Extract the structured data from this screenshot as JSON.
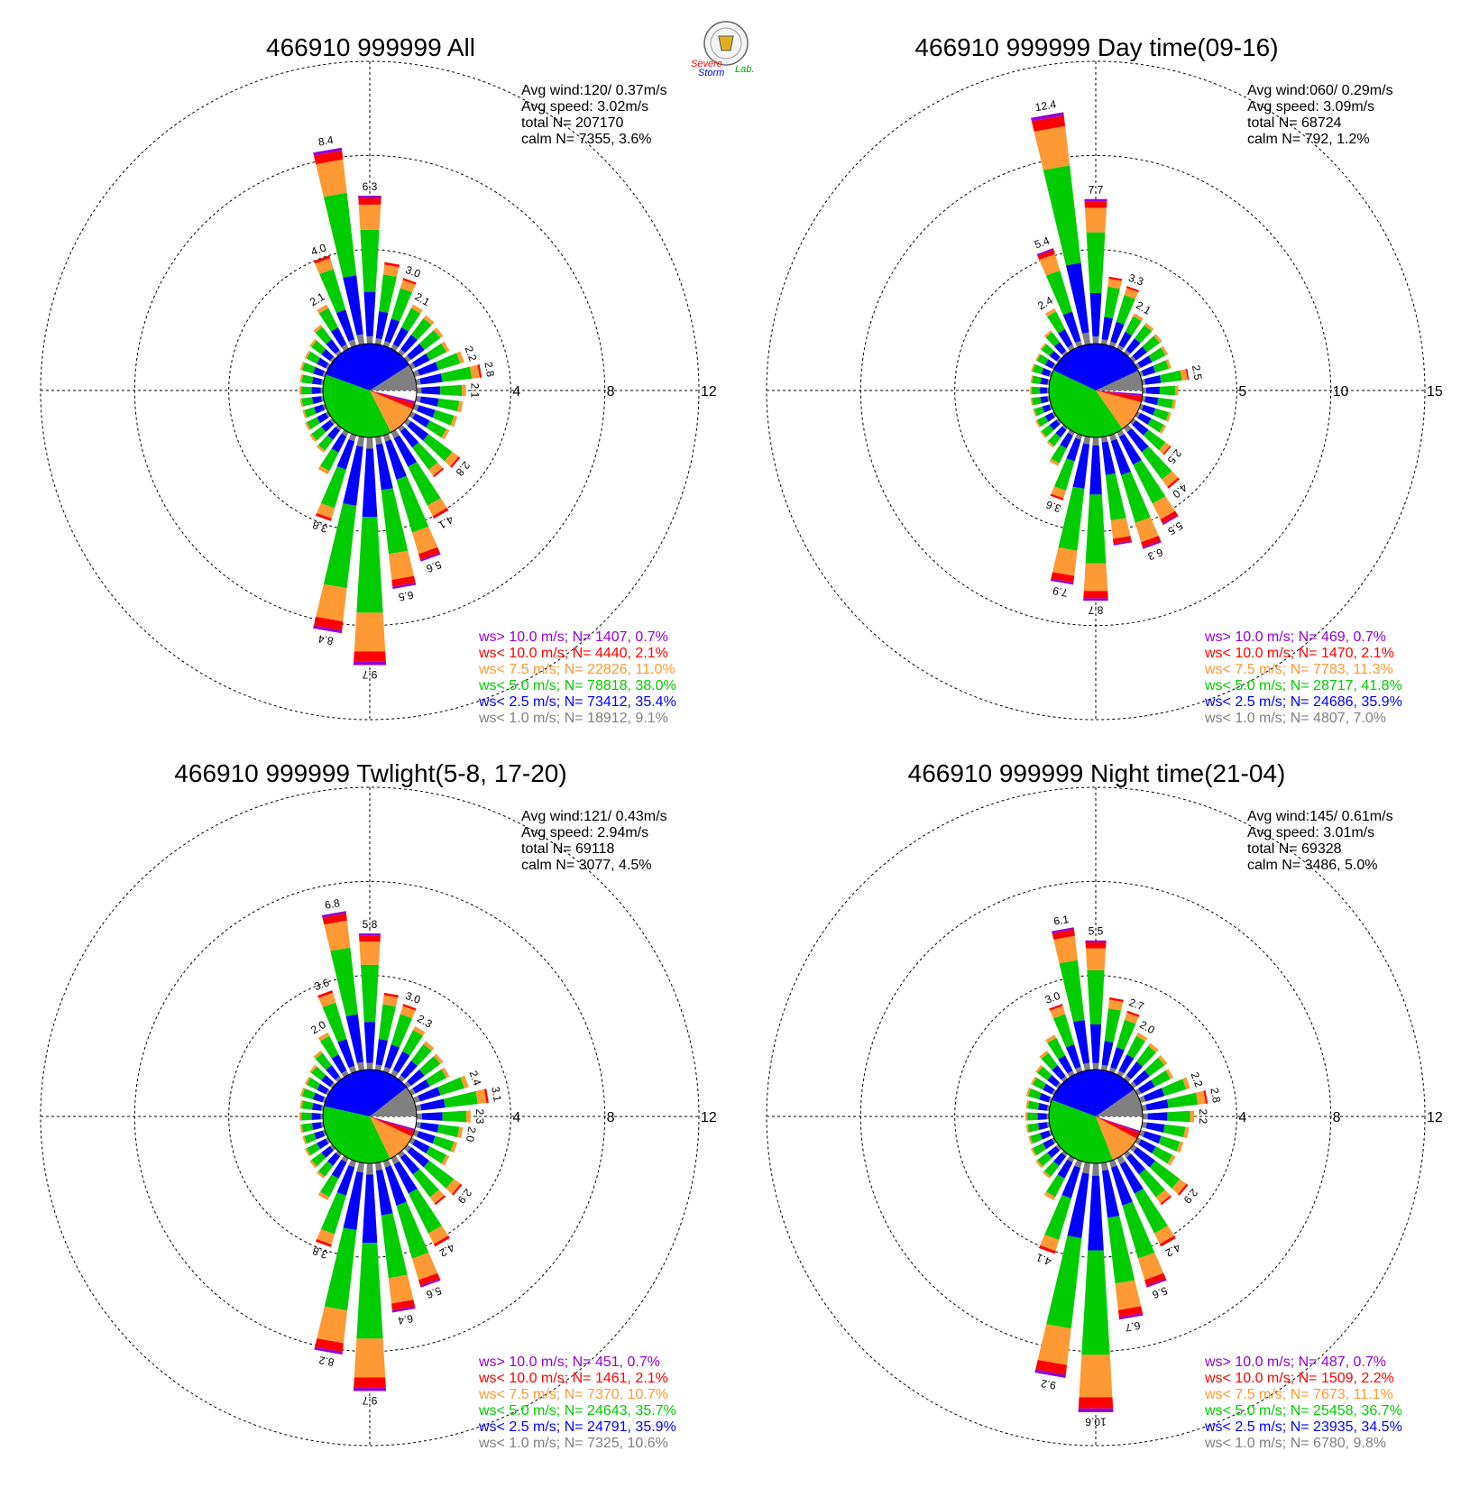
{
  "colors": {
    "gt10": "#9400d3",
    "lt10": "#ff0000",
    "lt75": "#ff9933",
    "lt50": "#00cc00",
    "lt25": "#0000ff",
    "lt10ms": "#808080",
    "grid": "#000000"
  },
  "logo": {
    "text_severe": "Severe",
    "text_storm": "Storm",
    "text_lab": "Lab."
  },
  "chart_data": [
    {
      "type": "wind-rose",
      "title": "466910 999999 All",
      "stats": {
        "avg_wind": "Avg wind:120/ 0.37m/s",
        "avg_speed": "Avg speed: 3.02m/s",
        "total": "total N=      207170",
        "calm": "calm N=   7355,   3.6%"
      },
      "ring_labels": [
        "4",
        "8",
        "12"
      ],
      "rmax": 12,
      "labels": [
        {
          "dir": 0,
          "text": "6.3"
        },
        {
          "dir": 20,
          "text": "3.0"
        },
        {
          "dir": 30,
          "text": "2.1"
        },
        {
          "dir": 70,
          "text": "2.2"
        },
        {
          "dir": 80,
          "text": "2.8"
        },
        {
          "dir": 90,
          "text": "2.1"
        },
        {
          "dir": 130,
          "text": "2.8"
        },
        {
          "dir": 150,
          "text": "4.1"
        },
        {
          "dir": 160,
          "text": "5.6"
        },
        {
          "dir": 170,
          "text": "6.5"
        },
        {
          "dir": 180,
          "text": "9.7"
        },
        {
          "dir": 190,
          "text": "8.4"
        },
        {
          "dir": 200,
          "text": "3.8"
        },
        {
          "dir": 330,
          "text": "2.1"
        },
        {
          "dir": 340,
          "text": "4.0"
        },
        {
          "dir": 350,
          "text": "8.4"
        }
      ],
      "totals": [
        6.3,
        3.5,
        3.0,
        2.1,
        2.0,
        1.9,
        1.8,
        2.2,
        2.8,
        2.1,
        2.0,
        1.9,
        1.8,
        2.8,
        2.6,
        4.1,
        5.6,
        6.5,
        9.7,
        8.4,
        3.8,
        2.0,
        1.3,
        1.2,
        1.1,
        1.0,
        1.0,
        1.0,
        1.0,
        1.1,
        1.1,
        1.2,
        1.5,
        2.1,
        4.0,
        8.4
      ],
      "calm_pie": [
        {
          "cls": "lt10ms",
          "pct": 9.1
        },
        {
          "cls": "lt25",
          "pct": 35.4
        },
        {
          "cls": "lt50",
          "pct": 38.0
        },
        {
          "cls": "lt75",
          "pct": 11.0
        },
        {
          "cls": "lt10",
          "pct": 2.1
        },
        {
          "cls": "gt10",
          "pct": 0.7
        }
      ],
      "legend": [
        {
          "cls": "gt10",
          "text": "ws> 10.0 m/s; N=  1407,  0.7%"
        },
        {
          "cls": "lt10",
          "text": "ws< 10.0 m/s; N=  4440,  2.1%"
        },
        {
          "cls": "lt75",
          "text": "ws<  7.5 m/s; N= 22826, 11.0%"
        },
        {
          "cls": "lt50",
          "text": "ws<  5.0 m/s; N= 78818, 38.0%"
        },
        {
          "cls": "lt25",
          "text": "ws<  2.5 m/s; N= 73412, 35.4%"
        },
        {
          "cls": "lt10ms",
          "text": "ws<  1.0 m/s; N= 18912,  9.1%"
        }
      ]
    },
    {
      "type": "wind-rose",
      "title": "466910 999999 Day time(09-16)",
      "stats": {
        "avg_wind": "Avg wind:060/ 0.29m/s",
        "avg_speed": "Avg speed: 3.09m/s",
        "total": "total N=       68724",
        "calm": "calm N=    792,   1.2%"
      },
      "ring_labels": [
        "5",
        "10",
        "15"
      ],
      "rmax": 15,
      "labels": [
        {
          "dir": 0,
          "text": "7.7"
        },
        {
          "dir": 20,
          "text": "3.3"
        },
        {
          "dir": 30,
          "text": "2.1"
        },
        {
          "dir": 80,
          "text": "2.5"
        },
        {
          "dir": 130,
          "text": "2.5"
        },
        {
          "dir": 140,
          "text": "4.0"
        },
        {
          "dir": 150,
          "text": "5.5"
        },
        {
          "dir": 160,
          "text": "6.3"
        },
        {
          "dir": 180,
          "text": "8.7"
        },
        {
          "dir": 190,
          "text": "7.9"
        },
        {
          "dir": 200,
          "text": "3.6"
        },
        {
          "dir": 330,
          "text": "2.4"
        },
        {
          "dir": 340,
          "text": "5.4"
        },
        {
          "dir": 350,
          "text": "12.4"
        }
      ],
      "totals": [
        7.7,
        3.6,
        3.3,
        2.1,
        2.0,
        1.9,
        1.8,
        1.7,
        2.5,
        1.9,
        1.8,
        1.7,
        1.7,
        2.5,
        4.0,
        5.5,
        6.3,
        5.8,
        8.7,
        7.9,
        3.6,
        2.0,
        1.3,
        1.2,
        1.1,
        1.0,
        1.0,
        1.0,
        1.0,
        1.1,
        1.1,
        1.2,
        1.5,
        2.4,
        5.4,
        12.4
      ],
      "calm_pie": [
        {
          "cls": "lt10ms",
          "pct": 7.0
        },
        {
          "cls": "lt25",
          "pct": 35.9
        },
        {
          "cls": "lt50",
          "pct": 41.8
        },
        {
          "cls": "lt75",
          "pct": 11.3
        },
        {
          "cls": "lt10",
          "pct": 2.1
        },
        {
          "cls": "gt10",
          "pct": 0.7
        }
      ],
      "legend": [
        {
          "cls": "gt10",
          "text": "ws> 10.0 m/s; N=   469,  0.7%"
        },
        {
          "cls": "lt10",
          "text": "ws< 10.0 m/s; N=  1470,  2.1%"
        },
        {
          "cls": "lt75",
          "text": "ws<  7.5 m/s; N=  7783, 11.3%"
        },
        {
          "cls": "lt50",
          "text": "ws<  5.0 m/s; N= 28717, 41.8%"
        },
        {
          "cls": "lt25",
          "text": "ws<  2.5 m/s; N= 24686, 35.9%"
        },
        {
          "cls": "lt10ms",
          "text": "ws<  1.0 m/s; N=  4807,  7.0%"
        }
      ]
    },
    {
      "type": "wind-rose",
      "title": "466910 999999 Twlight(5-8, 17-20)",
      "stats": {
        "avg_wind": "Avg wind:121/ 0.43m/s",
        "avg_speed": "Avg speed: 2.94m/s",
        "total": "total N=       69118",
        "calm": "calm N=   3077,   4.5%"
      },
      "ring_labels": [
        "4",
        "8",
        "12"
      ],
      "rmax": 12,
      "labels": [
        {
          "dir": 0,
          "text": "5.8"
        },
        {
          "dir": 20,
          "text": "3.0"
        },
        {
          "dir": 30,
          "text": "2.3"
        },
        {
          "dir": 70,
          "text": "2.4"
        },
        {
          "dir": 80,
          "text": "3.1"
        },
        {
          "dir": 90,
          "text": "2.3"
        },
        {
          "dir": 100,
          "text": "2.0"
        },
        {
          "dir": 130,
          "text": "2.9"
        },
        {
          "dir": 150,
          "text": "4.2"
        },
        {
          "dir": 160,
          "text": "5.6"
        },
        {
          "dir": 170,
          "text": "6.4"
        },
        {
          "dir": 180,
          "text": "9.7"
        },
        {
          "dir": 190,
          "text": "8.2"
        },
        {
          "dir": 200,
          "text": "3.8"
        },
        {
          "dir": 330,
          "text": "2.0"
        },
        {
          "dir": 340,
          "text": "3.6"
        },
        {
          "dir": 350,
          "text": "6.8"
        }
      ],
      "totals": [
        5.8,
        3.3,
        3.0,
        2.3,
        2.0,
        1.9,
        1.8,
        2.4,
        3.1,
        2.3,
        2.0,
        1.9,
        1.8,
        2.9,
        2.7,
        4.2,
        5.6,
        6.4,
        9.7,
        8.2,
        3.8,
        2.0,
        1.3,
        1.2,
        1.1,
        1.0,
        1.0,
        1.0,
        1.0,
        1.1,
        1.1,
        1.2,
        1.5,
        2.0,
        3.6,
        6.8
      ],
      "calm_pie": [
        {
          "cls": "lt10ms",
          "pct": 10.6
        },
        {
          "cls": "lt25",
          "pct": 35.9
        },
        {
          "cls": "lt50",
          "pct": 35.7
        },
        {
          "cls": "lt75",
          "pct": 10.7
        },
        {
          "cls": "lt10",
          "pct": 2.1
        },
        {
          "cls": "gt10",
          "pct": 0.7
        }
      ],
      "legend": [
        {
          "cls": "gt10",
          "text": "ws> 10.0 m/s; N=   451,  0.7%"
        },
        {
          "cls": "lt10",
          "text": "ws< 10.0 m/s; N=  1461,  2.1%"
        },
        {
          "cls": "lt75",
          "text": "ws<  7.5 m/s; N=  7370, 10.7%"
        },
        {
          "cls": "lt50",
          "text": "ws<  5.0 m/s; N= 24643, 35.7%"
        },
        {
          "cls": "lt25",
          "text": "ws<  2.5 m/s; N= 24791, 35.9%"
        },
        {
          "cls": "lt10ms",
          "text": "ws<  1.0 m/s; N=  7325, 10.6%"
        }
      ]
    },
    {
      "type": "wind-rose",
      "title": "466910 999999 Night time(21-04)",
      "stats": {
        "avg_wind": "Avg wind:145/ 0.61m/s",
        "avg_speed": "Avg speed: 3.01m/s",
        "total": "total N=       69328",
        "calm": "calm N=   3486,   5.0%"
      },
      "ring_labels": [
        "4",
        "8",
        "12"
      ],
      "rmax": 12,
      "labels": [
        {
          "dir": 0,
          "text": "5.5"
        },
        {
          "dir": 20,
          "text": "2.7"
        },
        {
          "dir": 30,
          "text": "2.0"
        },
        {
          "dir": 70,
          "text": "2.2"
        },
        {
          "dir": 80,
          "text": "2.8"
        },
        {
          "dir": 90,
          "text": "2.2"
        },
        {
          "dir": 130,
          "text": "2.9"
        },
        {
          "dir": 150,
          "text": "4.2"
        },
        {
          "dir": 160,
          "text": "5.6"
        },
        {
          "dir": 170,
          "text": "6.7"
        },
        {
          "dir": 180,
          "text": "10.6"
        },
        {
          "dir": 190,
          "text": "9.2"
        },
        {
          "dir": 200,
          "text": "4.1"
        },
        {
          "dir": 340,
          "text": "3.0"
        },
        {
          "dir": 350,
          "text": "6.1"
        }
      ],
      "totals": [
        5.5,
        3.1,
        2.7,
        2.0,
        1.9,
        1.8,
        1.7,
        2.2,
        2.8,
        2.2,
        2.0,
        1.9,
        1.8,
        2.9,
        2.7,
        4.2,
        5.6,
        6.7,
        10.6,
        9.2,
        4.1,
        2.0,
        1.3,
        1.2,
        1.1,
        1.0,
        1.0,
        1.0,
        1.0,
        1.1,
        1.1,
        1.2,
        1.5,
        1.9,
        3.0,
        6.1
      ],
      "calm_pie": [
        {
          "cls": "lt10ms",
          "pct": 9.8
        },
        {
          "cls": "lt25",
          "pct": 34.5
        },
        {
          "cls": "lt50",
          "pct": 36.7
        },
        {
          "cls": "lt75",
          "pct": 11.1
        },
        {
          "cls": "lt10",
          "pct": 2.2
        },
        {
          "cls": "gt10",
          "pct": 0.7
        }
      ],
      "legend": [
        {
          "cls": "gt10",
          "text": "ws> 10.0 m/s; N=   487,  0.7%"
        },
        {
          "cls": "lt10",
          "text": "ws< 10.0 m/s; N=  1509,  2.2%"
        },
        {
          "cls": "lt75",
          "text": "ws<  7.5 m/s; N=  7673, 11.1%"
        },
        {
          "cls": "lt50",
          "text": "ws<  5.0 m/s; N= 25458, 36.7%"
        },
        {
          "cls": "lt25",
          "text": "ws<  2.5 m/s; N= 23935, 34.5%"
        },
        {
          "cls": "lt10ms",
          "text": "ws<  1.0 m/s; N=  6780,  9.8%"
        }
      ]
    }
  ]
}
